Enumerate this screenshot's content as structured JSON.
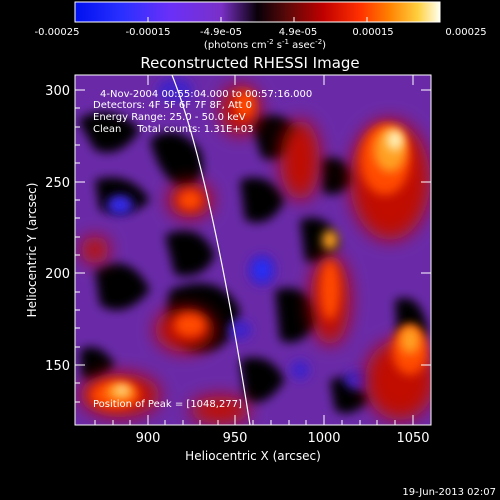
{
  "colorbar": {
    "ticks": [
      "-0.00025",
      "-0.00015",
      "-4.9e-05",
      "4.9e-05",
      "0.00015",
      "0.00025"
    ],
    "units_main": "(photons cm",
    "units_sup1": "-2",
    "units_mid1": " s",
    "units_sup2": "-1",
    "units_mid2": " asec",
    "units_sup3": "-2",
    "units_end": ")",
    "range": [
      -0.00025,
      0.00025
    ]
  },
  "plot": {
    "title": "Reconstructed RHESSI Image",
    "xlabel": "Heliocentric X (arcsec)",
    "ylabel": "Heliocentric Y (arcsec)",
    "xticks": [
      "900",
      "950",
      "1000",
      "1050"
    ],
    "yticks": [
      "150",
      "200",
      "250",
      "300"
    ],
    "xlim": [
      862,
      1054
    ],
    "ylim": [
      116,
      310
    ]
  },
  "annotations": {
    "time_range": "4-Nov-2004 00:55:04.000 to 00:57:16.000",
    "detectors": "Detectors: 4F 5F 6F 7F 8F, Att 0",
    "energy": "Energy Range: 25.0 - 50.0 keV",
    "clean": "Clean     Total counts: 1.31E+03",
    "peak": "Position of Peak = [1048,277]"
  },
  "footer": {
    "timestamp": "19-Jun-2013 02:07"
  },
  "colors": {
    "background": "#000000",
    "axis": "#ffffff",
    "limb": "#ffffff"
  }
}
